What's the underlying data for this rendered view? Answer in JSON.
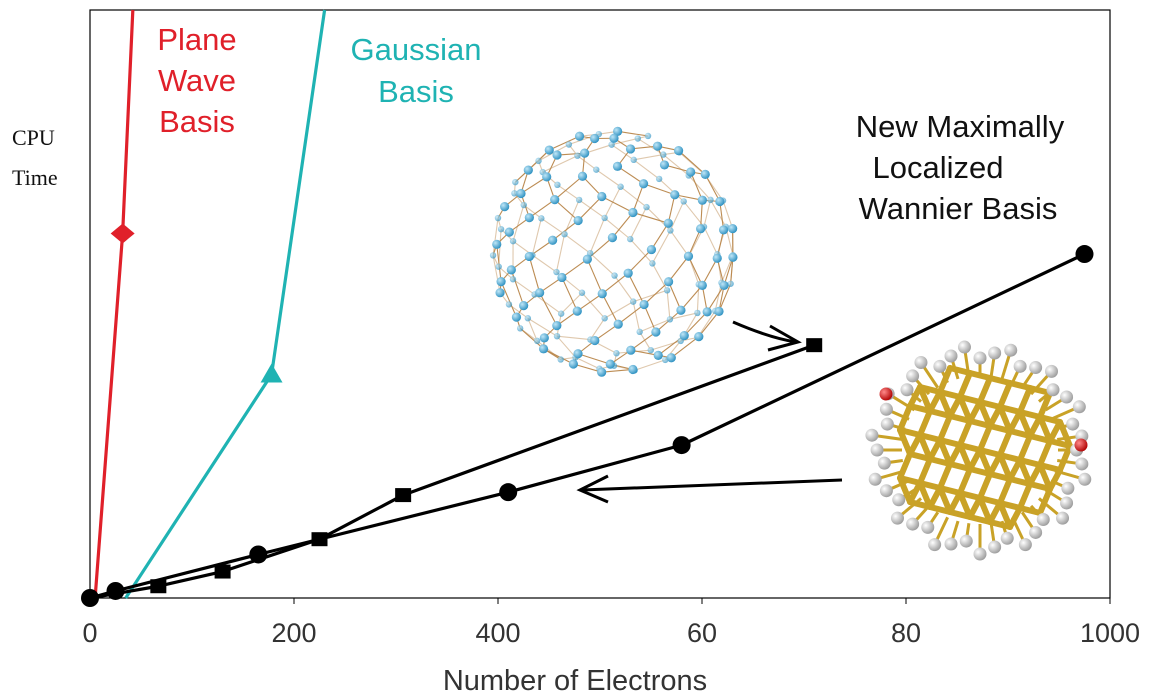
{
  "chart_data": {
    "type": "line",
    "xlabel": "Number of Electrons",
    "ylabel": "CPU Time",
    "x_ticks": [
      "0",
      "200",
      "400",
      "60",
      "80",
      "1000"
    ],
    "xlim": [
      0,
      1000
    ],
    "ylim": [
      0,
      1
    ],
    "grid": false,
    "series": [
      {
        "key": "plane",
        "label_lines": [
          "Plane",
          "Wave",
          "Basis"
        ],
        "color": "#e0202a",
        "marker": "diamond",
        "points": [
          [
            5,
            0.0
          ],
          [
            32,
            0.62
          ],
          [
            42,
            1.0
          ]
        ],
        "marked": [
          1
        ]
      },
      {
        "key": "gauss",
        "label_lines": [
          "Gaussian",
          "Basis"
        ],
        "color": "#1fb3b3",
        "marker": "triangle",
        "points": [
          [
            35,
            0.0
          ],
          [
            178,
            0.38
          ],
          [
            230,
            1.0
          ]
        ],
        "marked": [
          1
        ]
      },
      {
        "key": "wannier_sq",
        "label_lines": [],
        "color": "#000000",
        "marker": "square",
        "points": [
          [
            0,
            0.0
          ],
          [
            67,
            0.02
          ],
          [
            130,
            0.045
          ],
          [
            225,
            0.1
          ],
          [
            307,
            0.175
          ],
          [
            710,
            0.43
          ]
        ],
        "marked": [
          1,
          2,
          3,
          4,
          5
        ]
      },
      {
        "key": "wannier_circ",
        "label_lines": [
          "New Maximally",
          "Localized",
          "Wannier Basis"
        ],
        "color": "#000000",
        "marker": "circle",
        "points": [
          [
            0,
            0.0
          ],
          [
            25,
            0.012
          ],
          [
            165,
            0.074
          ],
          [
            410,
            0.18
          ],
          [
            580,
            0.26
          ],
          [
            975,
            0.585
          ]
        ],
        "marked": [
          0,
          1,
          2,
          3,
          4,
          5
        ]
      }
    ]
  },
  "images": {
    "buckyball": "fullerene-molecule-icon",
    "nanocrystal": "nanocrystal-cluster-icon"
  }
}
